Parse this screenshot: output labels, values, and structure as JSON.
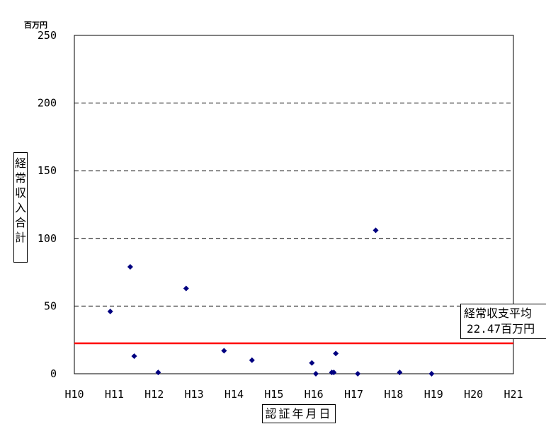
{
  "chart_data": {
    "type": "scatter",
    "title": "",
    "ylabel": "経常収入合計",
    "xlabel": "認証年月日",
    "y_unit": "百万円",
    "ylim": [
      0,
      250
    ],
    "yticks": [
      0,
      50,
      100,
      150,
      200,
      250
    ],
    "x_tick_labels": [
      "H10",
      "H11",
      "H12",
      "H13",
      "H14",
      "H15",
      "H16",
      "H17",
      "H18",
      "H19",
      "H20",
      "H21"
    ],
    "xlim": [
      10,
      21
    ],
    "grid": "horizontal dashed",
    "colors": {
      "points": "#000080",
      "average_line": "#ff0000",
      "grid": "#000000"
    },
    "points": [
      {
        "x": 10.9,
        "y": 46
      },
      {
        "x": 11.4,
        "y": 79
      },
      {
        "x": 11.5,
        "y": 13
      },
      {
        "x": 12.1,
        "y": 1
      },
      {
        "x": 12.8,
        "y": 63
      },
      {
        "x": 13.75,
        "y": 17
      },
      {
        "x": 14.45,
        "y": 10
      },
      {
        "x": 15.95,
        "y": 8
      },
      {
        "x": 16.05,
        "y": 0
      },
      {
        "x": 16.45,
        "y": 1
      },
      {
        "x": 16.5,
        "y": 1
      },
      {
        "x": 16.55,
        "y": 15
      },
      {
        "x": 17.1,
        "y": 0
      },
      {
        "x": 17.55,
        "y": 106
      },
      {
        "x": 18.15,
        "y": 1
      },
      {
        "x": 18.95,
        "y": 0
      }
    ],
    "average_line": {
      "value": 22.47,
      "label_line1": "経常収支平均",
      "label_line2": "22.47百万円"
    }
  }
}
